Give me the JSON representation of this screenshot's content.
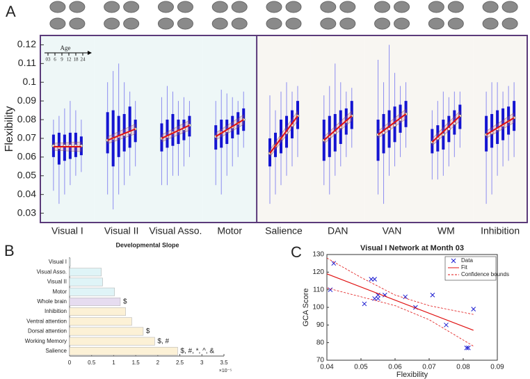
{
  "chart_data": [
    {
      "type": "box",
      "panel": "A",
      "y_label": "Flexibility",
      "age_label": "Age",
      "ages": [
        "03",
        "6",
        "9",
        "12",
        "18",
        "24"
      ],
      "categories": [
        "Visual I",
        "Visual II",
        "Visual Asso.",
        "Motor",
        "Salience",
        "DAN",
        "VAN",
        "WM",
        "Inhibition"
      ],
      "category_colors": [
        "#eef7f7",
        "#eef7f7",
        "#eef7f7",
        "#eef7f7",
        "#f8f6f2",
        "#f8f6f2",
        "#f8f6f2",
        "#f8f6f2",
        "#f8f6f2"
      ],
      "box_color": "#1414d2",
      "whisker_color": "#8c8cf0",
      "fit_color": "#e01010",
      "frame_color": "#5b3a7a",
      "ylim": [
        0.025,
        0.125
      ],
      "yticks": [
        0.03,
        0.04,
        0.05,
        0.06,
        0.07,
        0.08,
        0.09,
        0.1,
        0.11,
        0.12
      ],
      "boxes": [
        [
          [
            0.042,
            0.06,
            0.066,
            0.072,
            0.08
          ],
          [
            0.035,
            0.056,
            0.065,
            0.073,
            0.082
          ],
          [
            0.04,
            0.058,
            0.066,
            0.072,
            0.086
          ],
          [
            0.045,
            0.059,
            0.066,
            0.073,
            0.09
          ],
          [
            0.05,
            0.06,
            0.066,
            0.073,
            0.085
          ],
          [
            0.052,
            0.061,
            0.066,
            0.071,
            0.08
          ]
        ],
        [
          [
            0.04,
            0.062,
            0.069,
            0.084,
            0.1
          ],
          [
            0.032,
            0.055,
            0.07,
            0.085,
            0.106
          ],
          [
            0.04,
            0.06,
            0.071,
            0.082,
            0.11
          ],
          [
            0.045,
            0.063,
            0.072,
            0.083,
            0.1
          ],
          [
            0.05,
            0.065,
            0.073,
            0.087,
            0.095
          ],
          [
            0.055,
            0.068,
            0.075,
            0.08,
            0.09
          ]
        ],
        [
          [
            0.045,
            0.063,
            0.07,
            0.078,
            0.092
          ],
          [
            0.045,
            0.065,
            0.071,
            0.08,
            0.098
          ],
          [
            0.05,
            0.066,
            0.073,
            0.083,
            0.095
          ],
          [
            0.05,
            0.067,
            0.074,
            0.08,
            0.09
          ],
          [
            0.055,
            0.069,
            0.075,
            0.08,
            0.092
          ],
          [
            0.06,
            0.071,
            0.077,
            0.082,
            0.09
          ]
        ],
        [
          [
            0.045,
            0.064,
            0.071,
            0.077,
            0.09
          ],
          [
            0.04,
            0.065,
            0.073,
            0.08,
            0.096
          ],
          [
            0.05,
            0.067,
            0.074,
            0.08,
            0.094
          ],
          [
            0.055,
            0.07,
            0.076,
            0.082,
            0.092
          ],
          [
            0.06,
            0.072,
            0.078,
            0.084,
            0.09
          ],
          [
            0.065,
            0.074,
            0.08,
            0.086,
            0.095
          ]
        ],
        [
          [
            0.035,
            0.055,
            0.062,
            0.07,
            0.093
          ],
          [
            0.04,
            0.06,
            0.066,
            0.073,
            0.085
          ],
          [
            0.045,
            0.062,
            0.07,
            0.08,
            0.095
          ],
          [
            0.05,
            0.065,
            0.073,
            0.082,
            0.1
          ],
          [
            0.055,
            0.07,
            0.077,
            0.085,
            0.095
          ],
          [
            0.06,
            0.075,
            0.082,
            0.09,
            0.098
          ]
        ],
        [
          [
            0.045,
            0.058,
            0.069,
            0.08,
            0.093
          ],
          [
            0.04,
            0.06,
            0.071,
            0.082,
            0.098
          ],
          [
            0.05,
            0.063,
            0.073,
            0.083,
            0.11
          ],
          [
            0.055,
            0.067,
            0.076,
            0.085,
            0.1
          ],
          [
            0.06,
            0.072,
            0.079,
            0.086,
            0.095
          ],
          [
            0.065,
            0.075,
            0.082,
            0.09,
            0.097
          ]
        ],
        [
          [
            0.04,
            0.058,
            0.072,
            0.08,
            0.112
          ],
          [
            0.035,
            0.062,
            0.073,
            0.083,
            0.1
          ],
          [
            0.05,
            0.065,
            0.075,
            0.085,
            0.12
          ],
          [
            0.055,
            0.068,
            0.077,
            0.087,
            0.105
          ],
          [
            0.06,
            0.073,
            0.08,
            0.088,
            0.098
          ],
          [
            0.065,
            0.076,
            0.083,
            0.09,
            0.1
          ]
        ],
        [
          [
            0.048,
            0.062,
            0.068,
            0.075,
            0.085
          ],
          [
            0.048,
            0.063,
            0.07,
            0.077,
            0.09
          ],
          [
            0.05,
            0.064,
            0.072,
            0.08,
            0.095
          ],
          [
            0.055,
            0.068,
            0.075,
            0.082,
            0.092
          ],
          [
            0.06,
            0.072,
            0.078,
            0.085,
            0.095
          ],
          [
            0.065,
            0.075,
            0.082,
            0.088,
            0.095
          ]
        ],
        [
          [
            0.035,
            0.063,
            0.072,
            0.082,
            0.095
          ],
          [
            0.04,
            0.065,
            0.073,
            0.083,
            0.1
          ],
          [
            0.05,
            0.067,
            0.075,
            0.085,
            0.1
          ],
          [
            0.055,
            0.069,
            0.077,
            0.086,
            0.095
          ],
          [
            0.058,
            0.072,
            0.079,
            0.087,
            0.098
          ],
          [
            0.06,
            0.074,
            0.081,
            0.09,
            0.1
          ]
        ]
      ],
      "fits": [
        [
          0.0655,
          0.0655
        ],
        [
          0.069,
          0.075
        ],
        [
          0.07,
          0.077
        ],
        [
          0.071,
          0.08
        ],
        [
          0.062,
          0.082
        ],
        [
          0.069,
          0.082
        ],
        [
          0.072,
          0.083
        ],
        [
          0.068,
          0.082
        ],
        [
          0.072,
          0.081
        ]
      ]
    },
    {
      "type": "barh",
      "panel": "B",
      "title": "Developmental Slope",
      "categories": [
        "Visual I",
        "Visual Asso.",
        "Visual II",
        "Motor",
        "Whole brain",
        "Inhibition",
        "Ventral attention",
        "Dorsal attention",
        "Working Memory",
        "Salience"
      ],
      "values": [
        0.02,
        0.72,
        0.75,
        1.02,
        1.15,
        1.27,
        1.41,
        1.67,
        1.93,
        2.45
      ],
      "colors": [
        "#dff4f7",
        "#dff4f7",
        "#dff4f7",
        "#dff4f7",
        "#e6dcf0",
        "#fcf1d6",
        "#fcf1d6",
        "#fcf1d6",
        "#fcf1d6",
        "#fcf1d6"
      ],
      "annotations": [
        null,
        null,
        null,
        null,
        "$",
        null,
        null,
        "$",
        "$, #",
        "$, #, *, ^, &"
      ],
      "xlim": [
        0,
        3.5
      ],
      "xticks": [
        0,
        0.5,
        1,
        1.5,
        2,
        2.5,
        3,
        3.5
      ],
      "x_exponent": "×10⁻⁵"
    },
    {
      "type": "scatter",
      "panel": "C",
      "title": "Visual I Network at Month 03",
      "x_label": "Flexibility",
      "y_label": "GCA Score",
      "xlim": [
        0.04,
        0.09
      ],
      "xticks": [
        0.04,
        0.05,
        0.06,
        0.07,
        0.08,
        0.09
      ],
      "ylim": [
        70,
        130
      ],
      "yticks": [
        70,
        80,
        90,
        100,
        110,
        120,
        130
      ],
      "series": [
        {
          "name": "Data",
          "color": "#1a1ad0",
          "marker": "x",
          "x": [
            0.041,
            0.042,
            0.051,
            0.053,
            0.054,
            0.054,
            0.055,
            0.055,
            0.057,
            0.063,
            0.066,
            0.071,
            0.075,
            0.081,
            0.0815,
            0.083
          ],
          "values": [
            110,
            125,
            102,
            116,
            116,
            105,
            107,
            105,
            107,
            106,
            100,
            107,
            90,
            77,
            77,
            99
          ]
        },
        {
          "name": "Fit",
          "color": "#e01010",
          "marker": "line",
          "x": [
            0.04,
            0.083
          ],
          "values": [
            119,
            87
          ]
        },
        {
          "name": "Confidence bounds",
          "color": "#e01010",
          "marker": "dashed",
          "x": [
            0.04,
            0.05,
            0.06,
            0.07,
            0.083
          ],
          "values": [
            128,
            117,
            107,
            101,
            96
          ],
          "lower": [
            111,
            106,
            101,
            93,
            78
          ]
        }
      ]
    }
  ]
}
